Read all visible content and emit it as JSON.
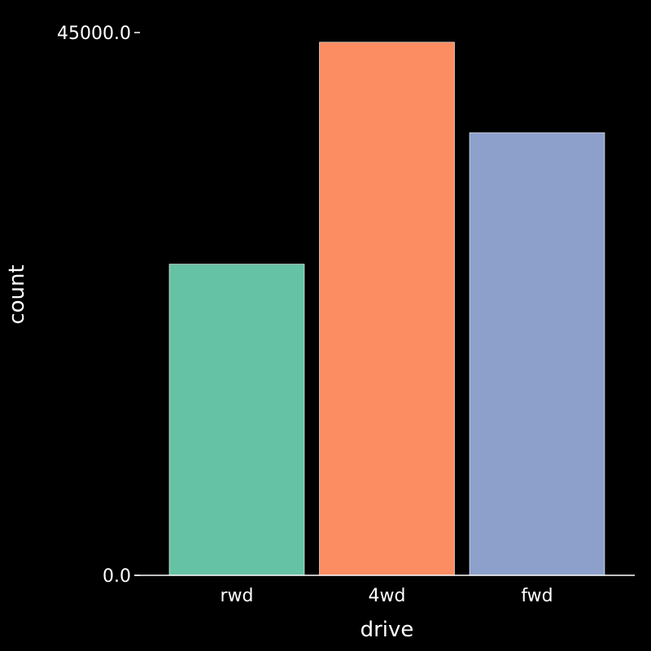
{
  "chart_data": {
    "type": "bar",
    "categories": [
      "rwd",
      "4wd",
      "fwd"
    ],
    "values": [
      25800,
      44200,
      36700
    ],
    "xlabel": "drive",
    "ylabel": "count",
    "ylim": [
      0,
      45000
    ],
    "y_ticks": [
      {
        "value": 0,
        "label": "0.0"
      },
      {
        "value": 45000,
        "label": "45000.0"
      }
    ],
    "grid": false,
    "legend": "none",
    "colors": [
      "#66c2a5",
      "#fc8d62",
      "#8da0cb"
    ],
    "axis_color": "#ffffff",
    "background": "#000000"
  }
}
